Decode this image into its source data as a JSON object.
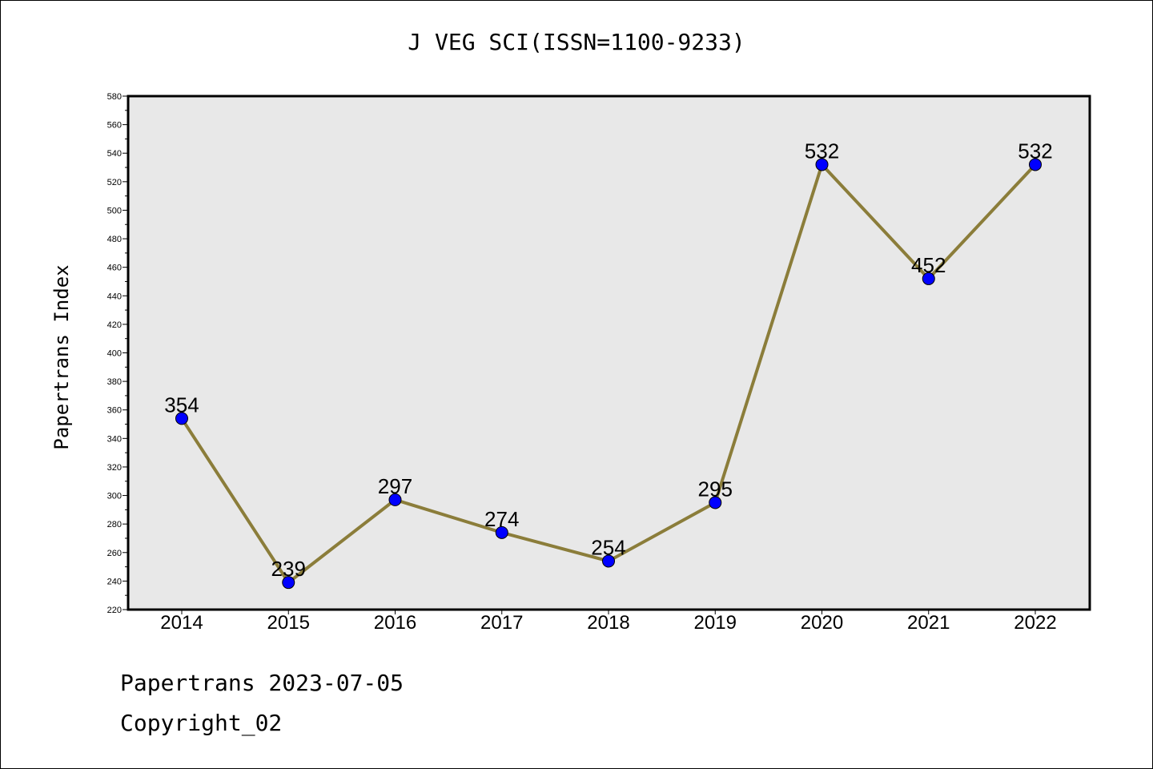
{
  "chart_data": {
    "type": "line",
    "title": "J VEG SCI(ISSN=1100-9233)",
    "ylabel": "Papertrans Index",
    "xlabel": "",
    "categories": [
      "2014",
      "2015",
      "2016",
      "2017",
      "2018",
      "2019",
      "2020",
      "2021",
      "2022"
    ],
    "values": [
      354,
      239,
      297,
      274,
      254,
      295,
      532,
      452,
      532
    ],
    "data_labels": [
      "354",
      "239",
      "297",
      "274",
      "254",
      "295",
      "532",
      "452",
      "532"
    ],
    "ylim": [
      220,
      580
    ],
    "yticks": [
      "220",
      "240",
      "260",
      "280",
      "300",
      "320",
      "340",
      "360",
      "380",
      "400",
      "420",
      "440",
      "460",
      "480",
      "500",
      "520",
      "540",
      "560",
      "580"
    ],
    "grid": false,
    "line_color": "#8b7d3a",
    "marker_color": "#0000ff",
    "plot_bg": "#e8e8e8"
  },
  "footer": {
    "line1": "Papertrans 2023-07-05",
    "line2": "Copyright_02"
  }
}
